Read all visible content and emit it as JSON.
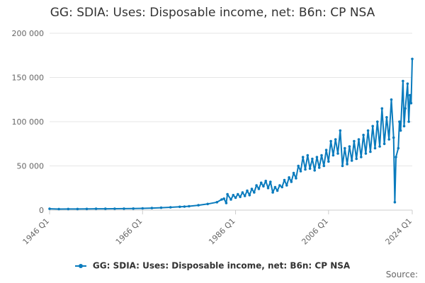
{
  "chart_data": {
    "type": "line",
    "title": "GG: SDIA: Uses: Disposable income, net: B6n: CP NSA",
    "xlabel": "",
    "ylabel": "",
    "x_range": [
      "1946 Q1",
      "2024 Q1"
    ],
    "x_tick_labels": [
      "1946 Q1",
      "1966 Q1",
      "1986 Q1",
      "2006 Q1",
      "2024 Q1"
    ],
    "y_tick_labels": [
      "0",
      "50 000",
      "100 000",
      "150 000",
      "200 000"
    ],
    "ylim": [
      0,
      200000
    ],
    "grid": "horizontal",
    "legend_position": "bottom-center",
    "series": [
      {
        "name": "GG: SDIA: Uses: Disposable income, net: B6n: CP NSA",
        "color": "#0a7bbd",
        "marker": "circle",
        "points": [
          [
            "1946 Q1",
            1500
          ],
          [
            "1948 Q1",
            1200
          ],
          [
            "1950 Q1",
            1300
          ],
          [
            "1952 Q1",
            1300
          ],
          [
            "1954 Q1",
            1400
          ],
          [
            "1956 Q1",
            1500
          ],
          [
            "1958 Q1",
            1500
          ],
          [
            "1960 Q1",
            1600
          ],
          [
            "1962 Q1",
            1700
          ],
          [
            "1964 Q1",
            1800
          ],
          [
            "1966 Q1",
            2000
          ],
          [
            "1968 Q1",
            2300
          ],
          [
            "1970 Q1",
            2700
          ],
          [
            "1972 Q1",
            3200
          ],
          [
            "1974 Q1",
            3800
          ],
          [
            "1975 Q1",
            4000
          ],
          [
            "1976 Q1",
            4400
          ],
          [
            "1978 Q1",
            5500
          ],
          [
            "1980 Q1",
            7000
          ],
          [
            "1982 Q1",
            9000
          ],
          [
            "1983 Q1",
            12000
          ],
          [
            "1983 Q3",
            13000
          ],
          [
            "1984 Q1",
            8000
          ],
          [
            "1984 Q2",
            18000
          ],
          [
            "1985 Q1",
            12000
          ],
          [
            "1985 Q3",
            17000
          ],
          [
            "1986 Q1",
            14000
          ],
          [
            "1986 Q3",
            18000
          ],
          [
            "1987 Q1",
            15000
          ],
          [
            "1987 Q3",
            20000
          ],
          [
            "1988 Q1",
            16000
          ],
          [
            "1988 Q3",
            22000
          ],
          [
            "1989 Q1",
            17000
          ],
          [
            "1989 Q3",
            24000
          ],
          [
            "1990 Q1",
            20000
          ],
          [
            "1990 Q3",
            28000
          ],
          [
            "1991 Q1",
            24000
          ],
          [
            "1991 Q3",
            31000
          ],
          [
            "1992 Q1",
            27000
          ],
          [
            "1992 Q3",
            33000
          ],
          [
            "1993 Q1",
            25000
          ],
          [
            "1993 Q3",
            32000
          ],
          [
            "1994 Q1",
            20000
          ],
          [
            "1994 Q3",
            26000
          ],
          [
            "1995 Q1",
            22000
          ],
          [
            "1995 Q3",
            28000
          ],
          [
            "1996 Q1",
            26000
          ],
          [
            "1996 Q3",
            34000
          ],
          [
            "1997 Q1",
            28000
          ],
          [
            "1997 Q3",
            37000
          ],
          [
            "1998 Q1",
            32000
          ],
          [
            "1998 Q3",
            42000
          ],
          [
            "1999 Q1",
            36000
          ],
          [
            "1999 Q3",
            50000
          ],
          [
            "2000 Q1",
            44000
          ],
          [
            "2000 Q3",
            60000
          ],
          [
            "2001 Q1",
            46000
          ],
          [
            "2001 Q3",
            62000
          ],
          [
            "2002 Q1",
            47000
          ],
          [
            "2002 Q3",
            58000
          ],
          [
            "2003 Q1",
            45000
          ],
          [
            "2003 Q3",
            60000
          ],
          [
            "2004 Q1",
            48000
          ],
          [
            "2004 Q3",
            62000
          ],
          [
            "2005 Q1",
            50000
          ],
          [
            "2005 Q3",
            68000
          ],
          [
            "2006 Q1",
            55000
          ],
          [
            "2006 Q3",
            78000
          ],
          [
            "2007 Q1",
            62000
          ],
          [
            "2007 Q3",
            80000
          ],
          [
            "2008 Q1",
            64000
          ],
          [
            "2008 Q3",
            90000
          ],
          [
            "2009 Q1",
            50000
          ],
          [
            "2009 Q3",
            70000
          ],
          [
            "2010 Q1",
            52000
          ],
          [
            "2010 Q3",
            72000
          ],
          [
            "2011 Q1",
            56000
          ],
          [
            "2011 Q3",
            78000
          ],
          [
            "2012 Q1",
            58000
          ],
          [
            "2012 Q3",
            80000
          ],
          [
            "2013 Q1",
            60000
          ],
          [
            "2013 Q3",
            85000
          ],
          [
            "2014 Q1",
            64000
          ],
          [
            "2014 Q3",
            90000
          ],
          [
            "2015 Q1",
            66000
          ],
          [
            "2015 Q3",
            95000
          ],
          [
            "2016 Q1",
            70000
          ],
          [
            "2016 Q3",
            100000
          ],
          [
            "2017 Q1",
            72000
          ],
          [
            "2017 Q3",
            115000
          ],
          [
            "2018 Q1",
            75000
          ],
          [
            "2018 Q3",
            105000
          ],
          [
            "2019 Q1",
            80000
          ],
          [
            "2019 Q3",
            125000
          ],
          [
            "2020 Q1",
            82000
          ],
          [
            "2020 Q2",
            9000
          ],
          [
            "2020 Q3",
            60000
          ],
          [
            "2021 Q1",
            70000
          ],
          [
            "2021 Q2",
            100000
          ],
          [
            "2021 Q3",
            90000
          ],
          [
            "2022 Q1",
            146000
          ],
          [
            "2022 Q2",
            95000
          ],
          [
            "2022 Q3",
            115000
          ],
          [
            "2023 Q1",
            143000
          ],
          [
            "2023 Q2",
            100000
          ],
          [
            "2023 Q3",
            130000
          ],
          [
            "2023 Q4",
            121000
          ],
          [
            "2024 Q1",
            171000
          ]
        ]
      }
    ]
  },
  "credits": "Source:"
}
